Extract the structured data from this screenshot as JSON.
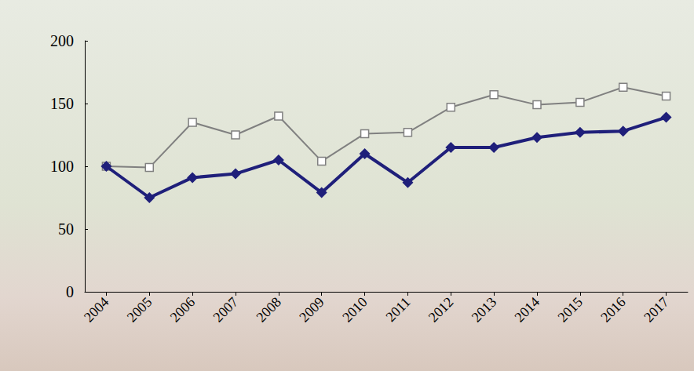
{
  "chart_data": {
    "type": "line",
    "categories": [
      "2004",
      "2005",
      "2006",
      "2007",
      "2008",
      "2009",
      "2010",
      "2011",
      "2012",
      "2013",
      "2014",
      "2015",
      "2016",
      "2017"
    ],
    "series": [
      {
        "color": "#808080",
        "marker": "open-square",
        "values": [
          100,
          99,
          135,
          125,
          140,
          104,
          126,
          127,
          147,
          157,
          149,
          151,
          163,
          156
        ]
      },
      {
        "color": "#1f1f7a",
        "marker": "diamond",
        "values": [
          100,
          75,
          91,
          94,
          105,
          79,
          110,
          87,
          115,
          115,
          123,
          127,
          128,
          139
        ]
      }
    ],
    "ylim": [
      0,
      200
    ],
    "yticks": [
      0,
      50,
      100,
      150,
      200
    ],
    "grid": false
  }
}
